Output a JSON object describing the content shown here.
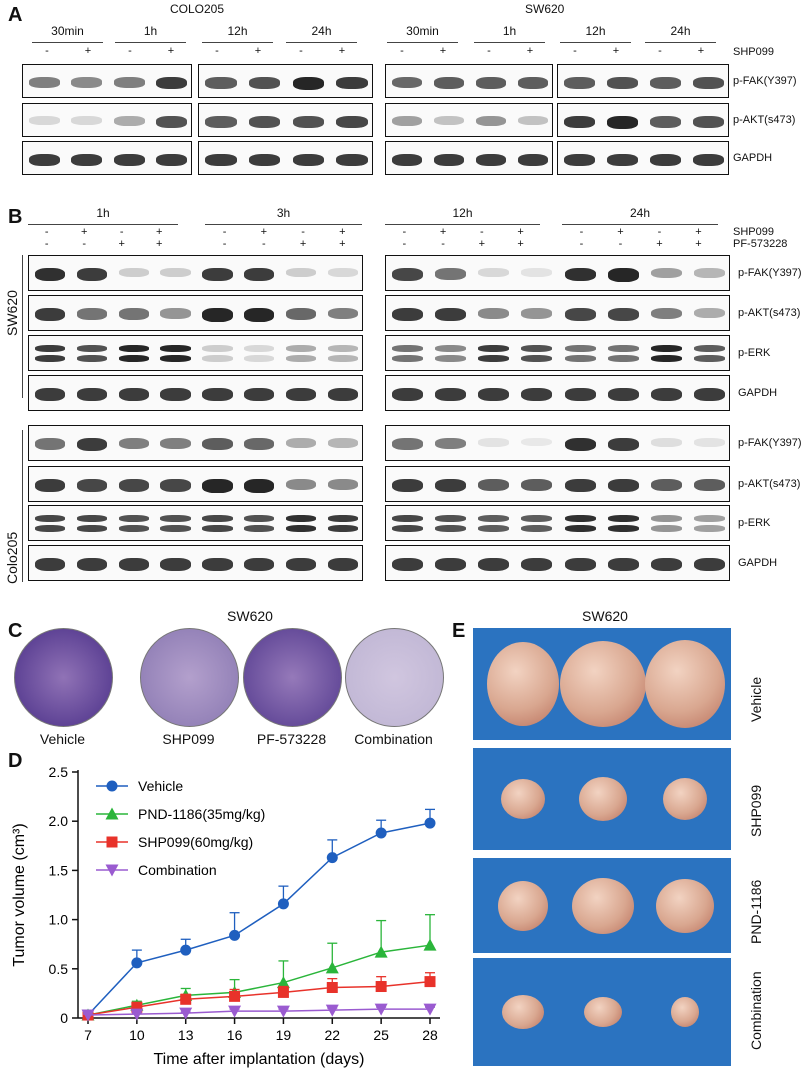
{
  "panel_a": {
    "label": "A",
    "cell_lines": [
      "COLO205",
      "SW620"
    ],
    "timepoints": [
      "30min",
      "1h",
      "12h",
      "24h"
    ],
    "minus": "-",
    "plus": "+",
    "treatment": "SHP099",
    "rows": [
      "p-FAK(Y397)",
      "p-AKT(s473)",
      "GAPDH"
    ]
  },
  "panel_b": {
    "label": "B",
    "timepoints": [
      "1h",
      "3h",
      "12h",
      "24h"
    ],
    "treatments": [
      "SHP099",
      "PF-573228"
    ],
    "shp_signs": [
      "-",
      "+",
      "-",
      "+"
    ],
    "pf_signs": [
      "-",
      "-",
      "+",
      "+"
    ],
    "cell_lines": [
      "SW620",
      "Colo205"
    ],
    "rows": [
      "p-FAK(Y397)",
      "p-AKT(s473)",
      "p-ERK",
      "GAPDH"
    ]
  },
  "panel_c": {
    "label": "C",
    "title": "SW620",
    "dishes": [
      "Vehicle",
      "SHP099",
      "PF-573228",
      "Combination"
    ]
  },
  "panel_e": {
    "label": "E",
    "title": "SW620",
    "groups": [
      "Vehicle",
      "SHP099",
      "PND-1186",
      "Combination"
    ]
  },
  "panel_d": {
    "label": "D"
  },
  "chart_data": {
    "type": "line",
    "xlabel": "Time after implantation (days)",
    "ylabel": "Tumor volume (cm³)",
    "x": [
      7,
      10,
      13,
      16,
      19,
      22,
      25,
      28
    ],
    "xticks": [
      "7",
      "10",
      "13",
      "16",
      "19",
      "22",
      "25",
      "28"
    ],
    "yticks": [
      "0",
      "0.5",
      "1.0",
      "1.5",
      "2.0",
      "2.5"
    ],
    "ylim": [
      0,
      2.5
    ],
    "legend": "top-left",
    "series": [
      {
        "name": "Vehicle",
        "color": "#1f5fbf",
        "marker": "circle",
        "values": [
          0.03,
          0.56,
          0.69,
          0.84,
          1.16,
          1.63,
          1.88,
          1.98
        ],
        "errors": [
          0.02,
          0.13,
          0.11,
          0.23,
          0.18,
          0.18,
          0.13,
          0.14
        ]
      },
      {
        "name": "PND-1186(35mg/kg)",
        "color": "#2ab53a",
        "marker": "triangle-up",
        "values": [
          0.03,
          0.13,
          0.23,
          0.26,
          0.36,
          0.51,
          0.67,
          0.74
        ],
        "errors": [
          0.01,
          0.04,
          0.07,
          0.13,
          0.22,
          0.25,
          0.32,
          0.31
        ]
      },
      {
        "name": "SHP099(60mg/kg)",
        "color": "#e8322a",
        "marker": "square",
        "values": [
          0.03,
          0.11,
          0.19,
          0.22,
          0.26,
          0.31,
          0.32,
          0.37
        ],
        "errors": [
          0.01,
          0.03,
          0.05,
          0.07,
          0.06,
          0.09,
          0.1,
          0.09
        ]
      },
      {
        "name": "Combination",
        "color": "#9a5bd0",
        "marker": "triangle-down",
        "values": [
          0.03,
          0.04,
          0.05,
          0.07,
          0.07,
          0.08,
          0.09,
          0.09
        ],
        "errors": [
          0.01,
          0.01,
          0.01,
          0.02,
          0.02,
          0.02,
          0.02,
          0.02
        ]
      }
    ]
  }
}
